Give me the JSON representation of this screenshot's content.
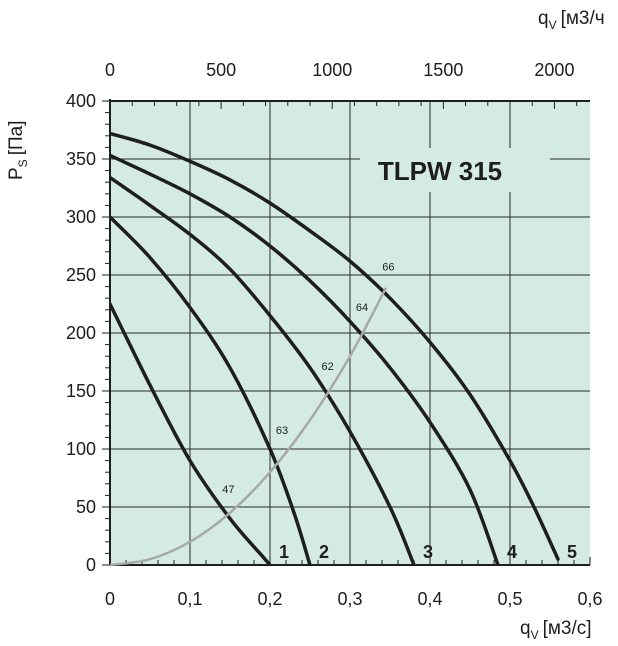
{
  "chart_data": {
    "type": "line",
    "title": "TLPW 315",
    "xlabel_main": "q",
    "xlabel_sub": "V",
    "xlabel_unit": "[м3/с]",
    "xlabel_top_main": "q",
    "xlabel_top_sub": "V",
    "xlabel_top_unit": "[м3/ч",
    "ylabel_main": "P",
    "ylabel_sub": "S",
    "ylabel_unit": "[Па]",
    "xlim": [
      0,
      0.6
    ],
    "ylim": [
      0,
      400
    ],
    "x_ticks": [
      0,
      0.1,
      0.2,
      0.3,
      0.4,
      0.5,
      0.6
    ],
    "x_tick_labels": [
      "0",
      "0,1",
      "0,2",
      "0,3",
      "0,4",
      "0,5",
      "0,6"
    ],
    "top_ticks": [
      0,
      500,
      1000,
      1500,
      2000
    ],
    "top_tick_labels": [
      "0",
      "500",
      "1000",
      "1500",
      "2000"
    ],
    "y_ticks": [
      0,
      50,
      100,
      150,
      200,
      250,
      300,
      350,
      400
    ],
    "y_tick_labels": [
      "0",
      "50",
      "100",
      "150",
      "200",
      "250",
      "300",
      "350",
      "400"
    ],
    "grid": true,
    "background_color": "#d4ebe4",
    "curve_color": "#1e1e1e",
    "system_curve_color": "#a8a8a8",
    "series": [
      {
        "label": "1",
        "x": [
          0,
          0.05,
          0.1,
          0.15,
          0.19,
          0.2
        ],
        "y": [
          225,
          155,
          90,
          40,
          8,
          0
        ]
      },
      {
        "label": "2",
        "x": [
          0,
          0.05,
          0.1,
          0.15,
          0.2,
          0.23,
          0.25
        ],
        "y": [
          300,
          265,
          222,
          170,
          100,
          45,
          0
        ]
      },
      {
        "label": "3",
        "x": [
          0,
          0.05,
          0.1,
          0.15,
          0.2,
          0.25,
          0.3,
          0.35,
          0.38
        ],
        "y": [
          334,
          310,
          285,
          255,
          215,
          170,
          115,
          50,
          0
        ]
      },
      {
        "label": "4",
        "x": [
          0,
          0.05,
          0.1,
          0.15,
          0.2,
          0.25,
          0.3,
          0.35,
          0.4,
          0.45,
          0.485
        ],
        "y": [
          353,
          337,
          320,
          300,
          275,
          245,
          210,
          170,
          123,
          65,
          0
        ]
      },
      {
        "label": "5",
        "x": [
          0,
          0.05,
          0.1,
          0.15,
          0.2,
          0.25,
          0.3,
          0.35,
          0.4,
          0.45,
          0.5,
          0.53,
          0.56
        ],
        "y": [
          372,
          362,
          348,
          332,
          312,
          288,
          262,
          230,
          192,
          147,
          90,
          50,
          5
        ]
      }
    ],
    "system_curve": {
      "x": [
        0,
        0.05,
        0.1,
        0.15,
        0.2,
        0.25,
        0.3,
        0.345
      ],
      "y": [
        0,
        5,
        20,
        45,
        80,
        125,
        180,
        239
      ]
    },
    "noise_points": [
      {
        "label": "47",
        "x": 0.148,
        "y": 62
      },
      {
        "label": "63",
        "x": 0.215,
        "y": 113
      },
      {
        "label": "62",
        "x": 0.272,
        "y": 168
      },
      {
        "label": "64",
        "x": 0.315,
        "y": 219
      },
      {
        "label": "66",
        "x": 0.348,
        "y": 254
      }
    ]
  }
}
